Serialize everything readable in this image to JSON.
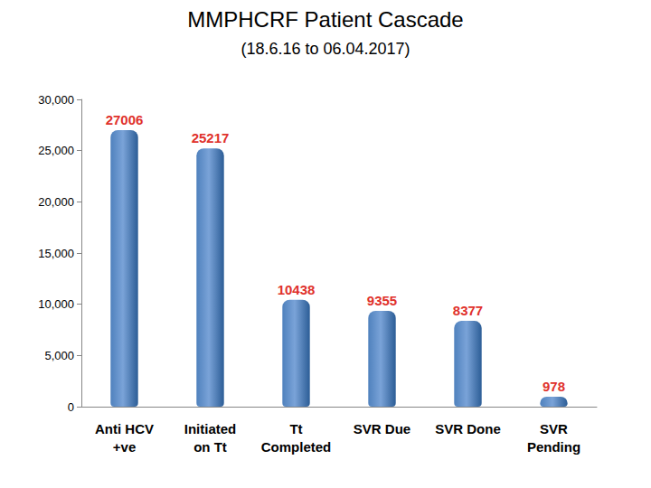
{
  "chart_data": {
    "type": "bar",
    "title": "MMPHCRF Patient Cascade",
    "subtitle": "(18.6.16 to 06.04.2017)",
    "categories": [
      "Anti HCV\n+ve",
      "Initiated\non Tt",
      "Tt\nCompleted",
      "SVR Due",
      "SVR Done",
      "SVR\nPending"
    ],
    "values": [
      27006,
      25217,
      10438,
      9355,
      8377,
      978
    ],
    "color": "#4f81bd",
    "ylim": [
      0,
      30000
    ],
    "yticks": [
      0,
      5000,
      10000,
      15000,
      20000,
      25000,
      30000
    ],
    "grid": false,
    "data_labels": true
  }
}
